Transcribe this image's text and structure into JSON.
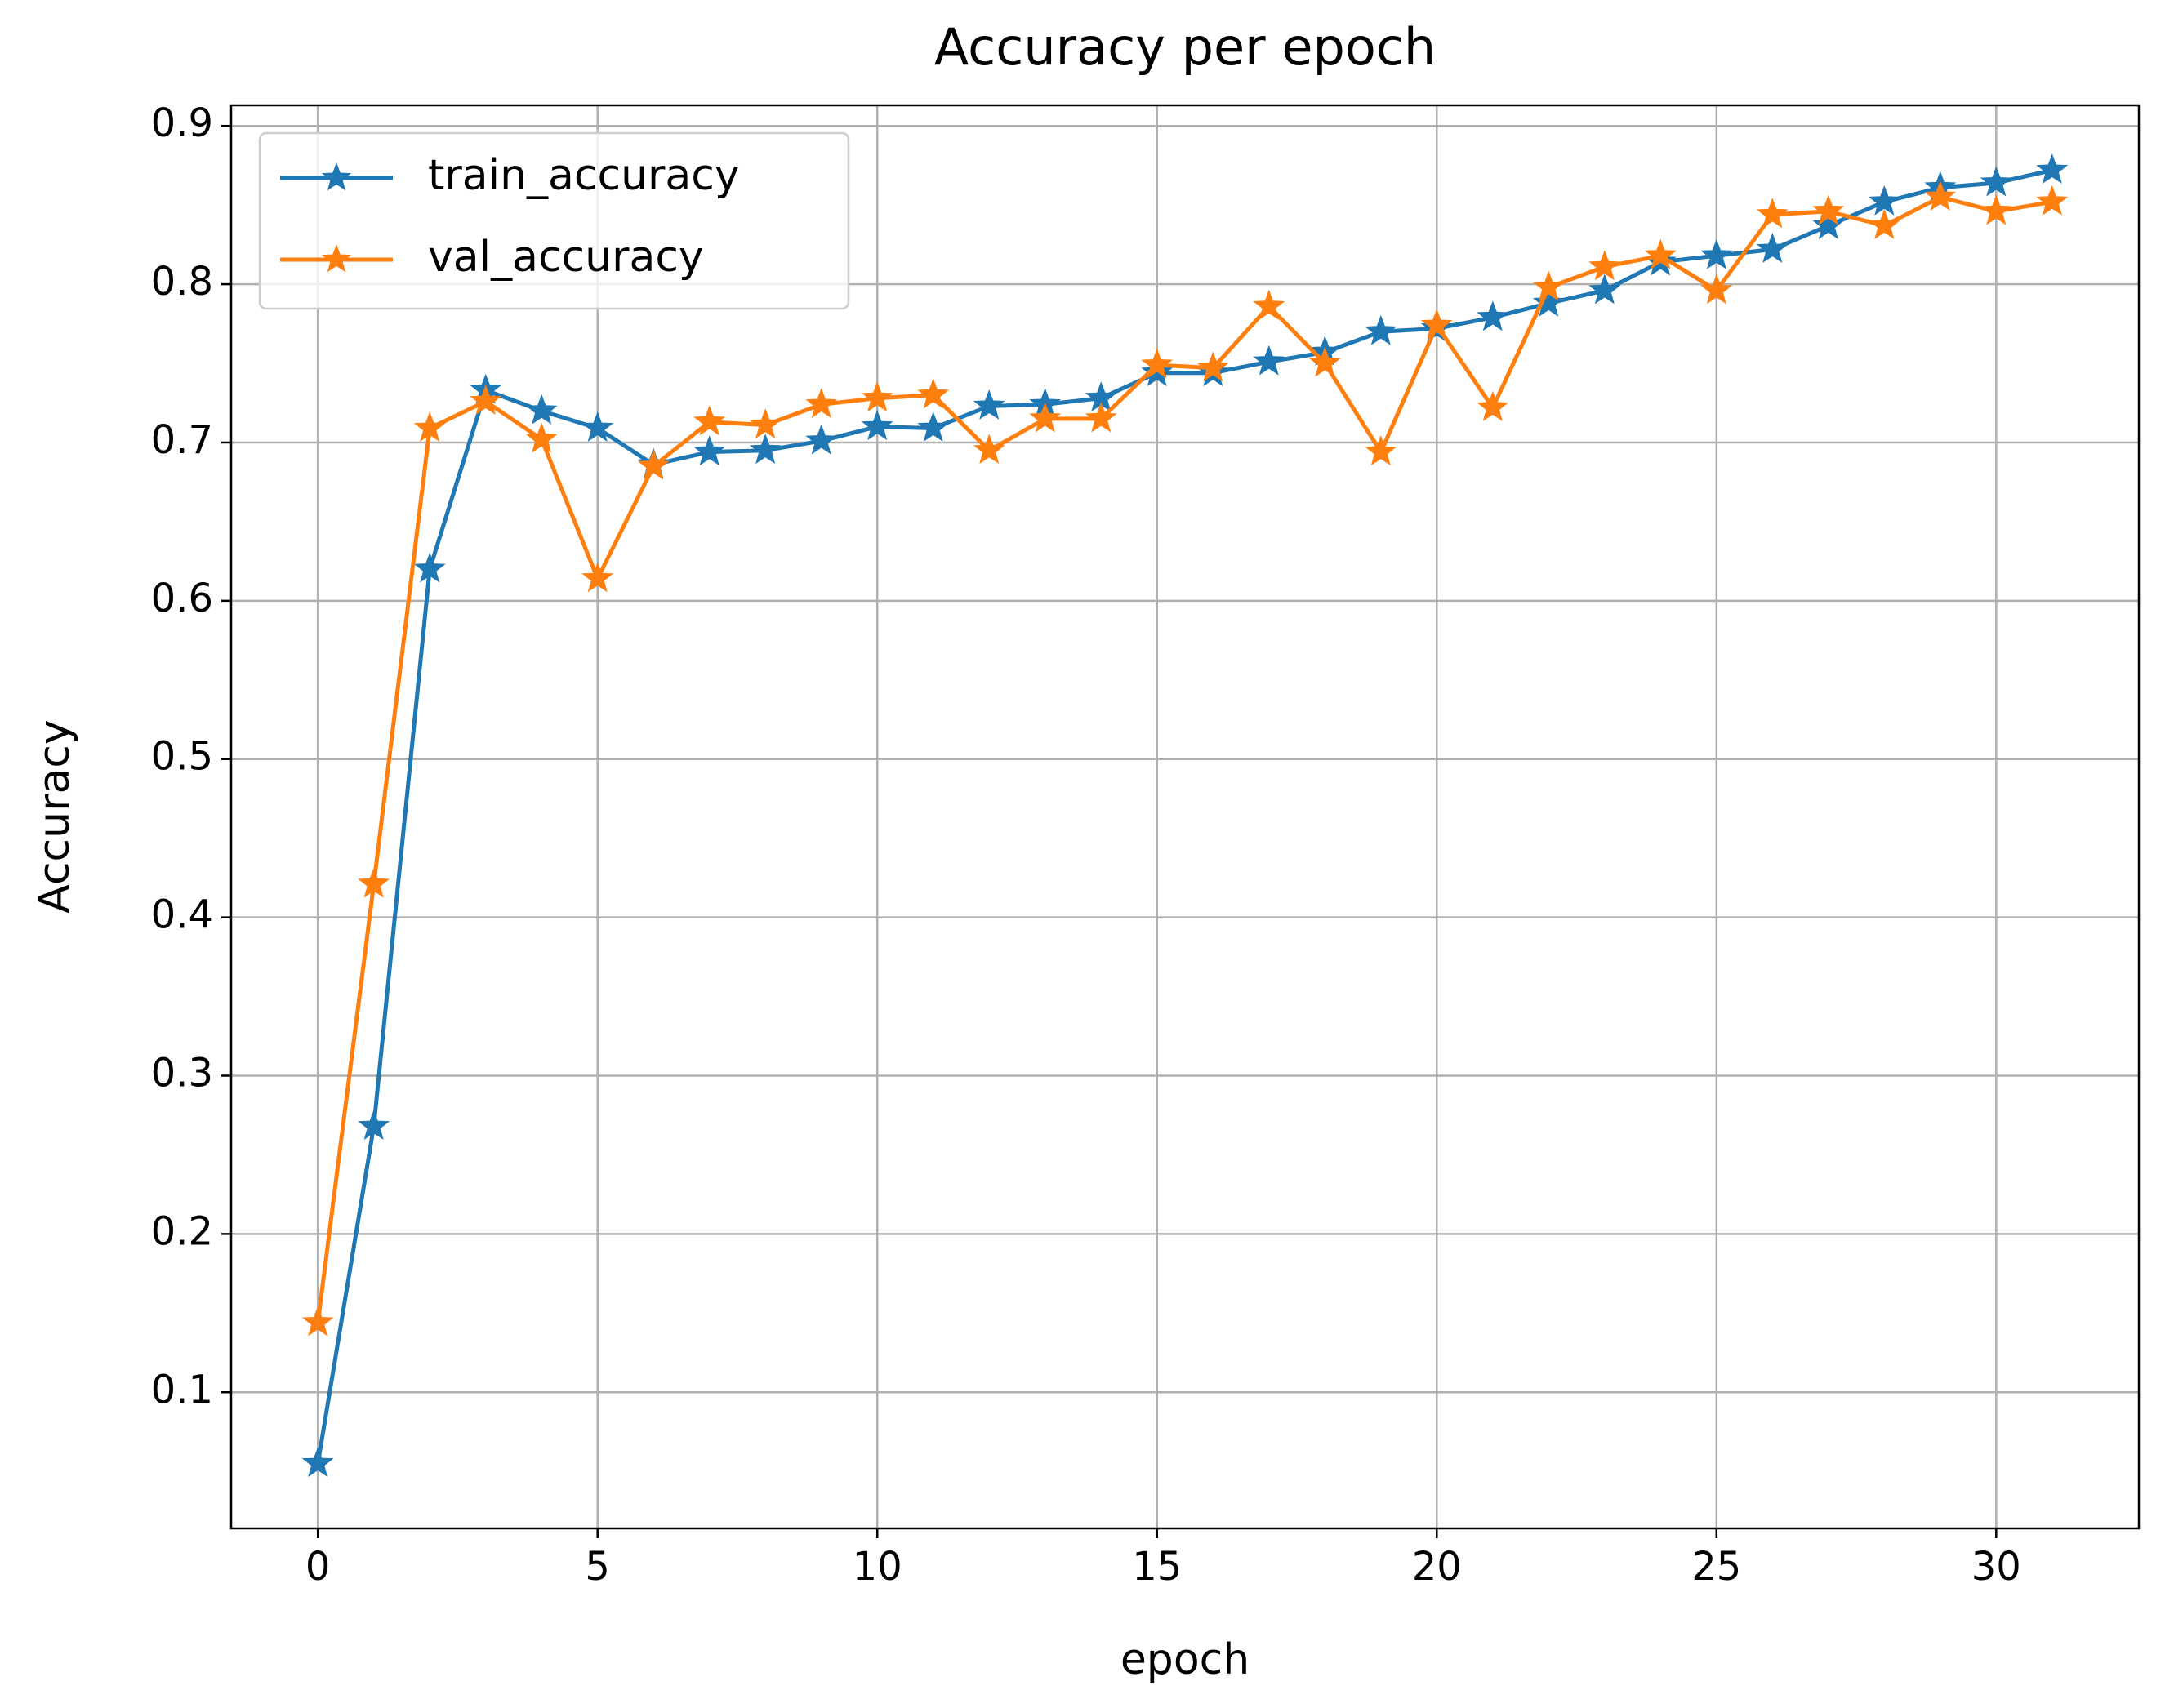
{
  "chart_data": {
    "type": "line",
    "title": "Accuracy per epoch",
    "x_label": "epoch",
    "y_label": "Accuracy",
    "x": [
      0,
      1,
      2,
      3,
      4,
      5,
      6,
      7,
      8,
      9,
      10,
      11,
      12,
      13,
      14,
      15,
      16,
      17,
      18,
      19,
      20,
      21,
      22,
      23,
      24,
      25,
      26,
      27,
      28,
      29,
      30,
      31
    ],
    "series": [
      {
        "name": "train_accuracy",
        "color": "#1f77b4",
        "values": [
          0.055,
          0.268,
          0.62,
          0.733,
          0.72,
          0.709,
          0.686,
          0.694,
          0.695,
          0.701,
          0.71,
          0.709,
          0.723,
          0.724,
          0.728,
          0.744,
          0.744,
          0.751,
          0.757,
          0.77,
          0.772,
          0.779,
          0.788,
          0.796,
          0.814,
          0.818,
          0.822,
          0.837,
          0.852,
          0.861,
          0.864,
          0.872
        ]
      },
      {
        "name": "val_accuracy",
        "color": "#ff7f0e",
        "values": [
          0.144,
          0.421,
          0.709,
          0.726,
          0.702,
          0.614,
          0.685,
          0.713,
          0.711,
          0.724,
          0.728,
          0.73,
          0.695,
          0.715,
          0.715,
          0.749,
          0.747,
          0.786,
          0.75,
          0.694,
          0.774,
          0.722,
          0.798,
          0.811,
          0.818,
          0.796,
          0.844,
          0.846,
          0.837,
          0.855,
          0.846,
          0.852
        ]
      }
    ],
    "xlim": [
      -1.55,
      32.55
    ],
    "ylim": [
      0.014,
      0.913
    ],
    "xticks": [
      0,
      5,
      10,
      15,
      20,
      25,
      30
    ],
    "yticks": [
      0.1,
      0.2,
      0.3,
      0.4,
      0.5,
      0.6,
      0.7,
      0.8,
      0.9
    ],
    "grid": true,
    "legend": "upper left",
    "marker": "star"
  }
}
